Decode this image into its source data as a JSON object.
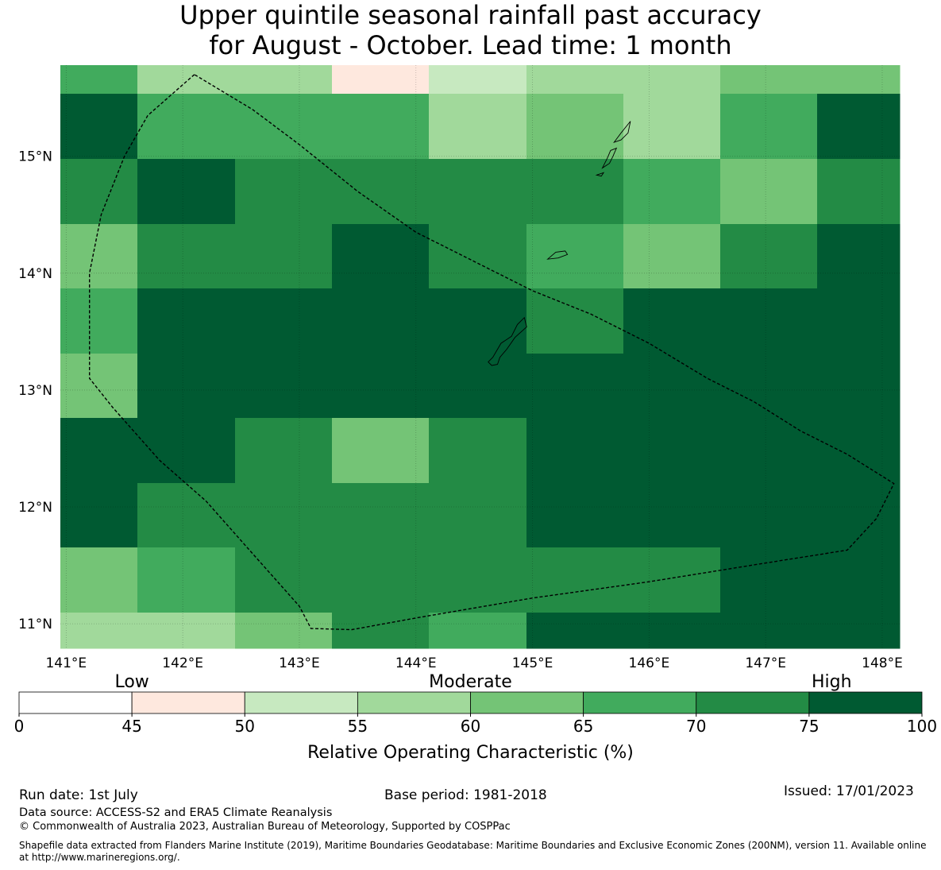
{
  "title": {
    "line1": "Upper quintile seasonal rainfall past accuracy",
    "line2": "for August - October. Lead time: 1 month"
  },
  "map": {
    "lon_labels": [
      "141°E",
      "142°E",
      "143°E",
      "144°E",
      "145°E",
      "146°E",
      "147°E",
      "148°E"
    ],
    "lat_labels": [
      "15°N",
      "14°N",
      "13°N",
      "12°N",
      "11°N"
    ],
    "extent": {
      "lon_min": 140.95,
      "lon_max": 148.15,
      "lat_min": 10.79,
      "lat_max": 15.78
    },
    "grid_cells_roc_bin": [
      [
        5,
        3,
        3,
        1,
        2,
        3,
        3,
        4,
        4
      ],
      [
        7,
        5,
        5,
        5,
        3,
        4,
        3,
        5,
        7
      ],
      [
        6,
        7,
        6,
        6,
        6,
        6,
        5,
        4,
        6
      ],
      [
        4,
        6,
        6,
        7,
        6,
        5,
        4,
        6,
        7
      ],
      [
        5,
        7,
        7,
        7,
        7,
        6,
        7,
        7,
        7
      ],
      [
        4,
        7,
        7,
        7,
        7,
        7,
        7,
        7,
        7
      ],
      [
        7,
        7,
        6,
        4,
        6,
        7,
        7,
        7,
        7
      ],
      [
        7,
        6,
        6,
        6,
        6,
        7,
        7,
        7,
        7
      ],
      [
        4,
        5,
        6,
        6,
        6,
        6,
        6,
        7,
        7
      ],
      [
        3,
        3,
        4,
        6,
        5,
        7,
        7,
        7,
        7
      ]
    ],
    "eez_boundary_lonlat": [
      [
        142.1,
        15.7
      ],
      [
        141.7,
        15.35
      ],
      [
        141.5,
        15.0
      ],
      [
        141.3,
        14.5
      ],
      [
        141.2,
        14.0
      ],
      [
        141.2,
        13.5
      ],
      [
        141.2,
        13.1
      ],
      [
        141.4,
        12.85
      ],
      [
        141.8,
        12.4
      ],
      [
        142.2,
        12.05
      ],
      [
        142.6,
        11.6
      ],
      [
        143.0,
        11.15
      ],
      [
        143.1,
        10.96
      ],
      [
        143.45,
        10.95
      ],
      [
        144.0,
        11.05
      ],
      [
        145.0,
        11.22
      ],
      [
        146.0,
        11.36
      ],
      [
        147.0,
        11.52
      ],
      [
        147.7,
        11.63
      ],
      [
        147.95,
        11.9
      ],
      [
        148.1,
        12.2
      ],
      [
        147.7,
        12.45
      ],
      [
        147.3,
        12.65
      ],
      [
        146.9,
        12.9
      ],
      [
        146.5,
        13.1
      ],
      [
        146.0,
        13.4
      ],
      [
        145.5,
        13.65
      ],
      [
        145.0,
        13.85
      ],
      [
        144.5,
        14.1
      ],
      [
        144.0,
        14.35
      ],
      [
        143.5,
        14.7
      ],
      [
        143.0,
        15.1
      ],
      [
        142.6,
        15.4
      ],
      [
        142.1,
        15.7
      ]
    ],
    "islands_lonlat": [
      [
        [
          144.62,
          13.24
        ],
        [
          144.66,
          13.28
        ],
        [
          144.73,
          13.4
        ],
        [
          144.82,
          13.46
        ],
        [
          144.87,
          13.56
        ],
        [
          144.93,
          13.62
        ],
        [
          144.95,
          13.54
        ],
        [
          144.85,
          13.45
        ],
        [
          144.78,
          13.35
        ],
        [
          144.72,
          13.28
        ],
        [
          144.7,
          13.22
        ],
        [
          144.65,
          13.21
        ]
      ],
      [
        [
          145.13,
          14.12
        ],
        [
          145.2,
          14.18
        ],
        [
          145.28,
          14.19
        ],
        [
          145.3,
          14.16
        ],
        [
          145.22,
          14.13
        ]
      ],
      [
        [
          145.6,
          14.9
        ],
        [
          145.64,
          14.98
        ],
        [
          145.67,
          15.05
        ],
        [
          145.72,
          15.07
        ],
        [
          145.69,
          15.0
        ],
        [
          145.66,
          14.94
        ]
      ],
      [
        [
          145.7,
          15.12
        ],
        [
          145.76,
          15.2
        ],
        [
          145.84,
          15.3
        ],
        [
          145.82,
          15.2
        ],
        [
          145.76,
          15.14
        ]
      ],
      [
        [
          145.55,
          14.84
        ],
        [
          145.61,
          14.86
        ],
        [
          145.59,
          14.83
        ]
      ]
    ]
  },
  "legend": {
    "categories": [
      {
        "label": "Low",
        "value_position": 45
      },
      {
        "label": "Moderate",
        "value_position": 60
      },
      {
        "label": "High",
        "value_position": 80
      }
    ],
    "bins": [
      {
        "from": 0,
        "to": 45,
        "color": "#ffffff"
      },
      {
        "from": 45,
        "to": 50,
        "color": "#fee8de"
      },
      {
        "from": 50,
        "to": 55,
        "color": "#c7e9c0"
      },
      {
        "from": 55,
        "to": 60,
        "color": "#a1d99b"
      },
      {
        "from": 60,
        "to": 65,
        "color": "#74c476"
      },
      {
        "from": 65,
        "to": 70,
        "color": "#41ab5d"
      },
      {
        "from": 70,
        "to": 75,
        "color": "#238b45"
      },
      {
        "from": 75,
        "to": 100,
        "color": "#005a32"
      }
    ],
    "ticks": [
      "0",
      "45",
      "50",
      "55",
      "60",
      "65",
      "70",
      "75",
      "100"
    ],
    "axis_label": "Relative Operating Characteristic (%)"
  },
  "footer": {
    "run_date": "Run date: 1st July",
    "base_period": "Base period: 1981-2018",
    "issued": "Issued: 17/01/2023",
    "data_source": "Data source: ACCESS-S2 and ERA5 Climate Reanalysis",
    "copyright": "© Commonwealth of Australia 2023, Australian Bureau of Meteorology, Supported by COSPPac",
    "shapefile": "Shapefile data extracted from Flanders Marine Institute (2019), Maritime Boundaries Geodatabase: Maritime Boundaries and Exclusive Economic Zones (200NM), version 11. Available online at http://www.marineregions.org/."
  }
}
